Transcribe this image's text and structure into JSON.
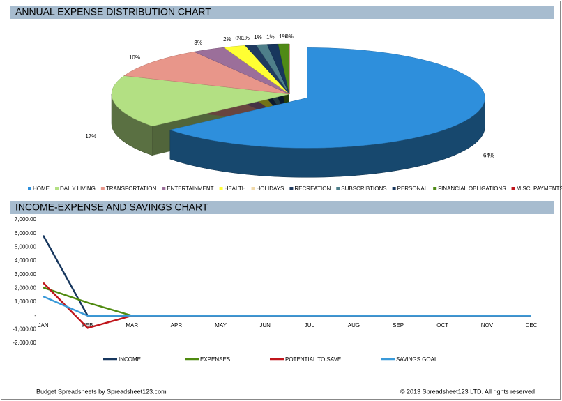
{
  "chart_data": [
    {
      "type": "pie",
      "title": "ANNUAL EXPENSE DISTRIBUTION CHART",
      "categories": [
        "HOME",
        "DAILY LIVING",
        "TRANSPORTATION",
        "ENTERTAINMENT",
        "HEALTH",
        "HOLIDAYS",
        "RECREATION",
        "SUBSCRIBTIONS",
        "PERSONAL",
        "FINANCIAL OBLIGATIONS",
        "MISC. PAYMENTS"
      ],
      "values": [
        64,
        17,
        10,
        3,
        2,
        0,
        1,
        1,
        1,
        1,
        0
      ],
      "value_labels": [
        "64%",
        "17%",
        "10%",
        "3%",
        "2%",
        "0%",
        "1%",
        "1%",
        "1%",
        "1%",
        "0%"
      ],
      "colors": [
        "#2e8fdc",
        "#b3e083",
        "#e8968a",
        "#9b6f9a",
        "#ffff33",
        "#f0d8a8",
        "#1f3a5f",
        "#4e7f8a",
        "#17365d",
        "#4f8a16",
        "#c0151b"
      ],
      "legend": "bottom"
    },
    {
      "type": "line",
      "title": "INCOME-EXPENSE AND SAVINGS CHART",
      "categories": [
        "JAN",
        "FEB",
        "MAR",
        "APR",
        "MAY",
        "JUN",
        "JUL",
        "AUG",
        "SEP",
        "OCT",
        "NOV",
        "DEC"
      ],
      "series": [
        {
          "name": "INCOME",
          "color": "#17375e",
          "values": [
            5850,
            0,
            0,
            0,
            0,
            0,
            0,
            0,
            0,
            0,
            0,
            0
          ]
        },
        {
          "name": "EXPENSES",
          "color": "#4f8a10",
          "values": [
            2050,
            950,
            0,
            0,
            0,
            0,
            0,
            0,
            0,
            0,
            0,
            0
          ]
        },
        {
          "name": "POTENTIAL TO SAVE",
          "color": "#c0151b",
          "values": [
            2400,
            -900,
            0,
            0,
            0,
            0,
            0,
            0,
            0,
            0,
            0,
            0
          ]
        },
        {
          "name": "SAVINGS GOAL",
          "color": "#3a9ad9",
          "values": [
            1400,
            0,
            0,
            0,
            0,
            0,
            0,
            0,
            0,
            0,
            0,
            0
          ]
        }
      ],
      "ylim": [
        -2000,
        7000
      ],
      "yticks": [
        {
          "value": -2000,
          "label": "-2,000.00"
        },
        {
          "value": -1000,
          "label": "-1,000.00"
        },
        {
          "value": 0,
          "label": "-"
        },
        {
          "value": 1000,
          "label": "1,000.00"
        },
        {
          "value": 2000,
          "label": "2,000.00"
        },
        {
          "value": 3000,
          "label": "3,000.00"
        },
        {
          "value": 4000,
          "label": "4,000.00"
        },
        {
          "value": 5000,
          "label": "5,000.00"
        },
        {
          "value": 6000,
          "label": "6,000.00"
        },
        {
          "value": 7000,
          "label": "7,000.00"
        }
      ],
      "legend": "bottom"
    }
  ],
  "footer": {
    "left": "Budget Spreadsheets by Spreadsheet123.com",
    "right": "© 2013 Spreadsheet123 LTD. All rights reserved"
  }
}
